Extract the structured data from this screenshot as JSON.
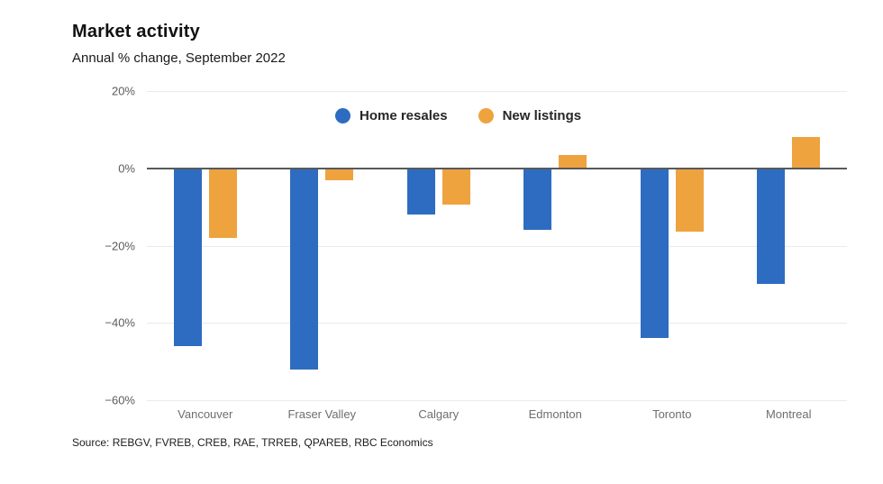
{
  "header": {
    "title": "Market activity",
    "subtitle": "Annual % change, September 2022"
  },
  "source": "Source: REBGV, FVREB, CREB, RAE, TRREB, QPAREB, RBC Economics",
  "colors": {
    "resales": "#2d6cc1",
    "listings": "#eea33e",
    "zero_line": "#58595b",
    "gridline": "#eaeaea",
    "tick_text": "#5a5b5e",
    "category_text": "#6d6e71"
  },
  "chart_data": {
    "type": "bar",
    "title": "Market activity",
    "subtitle": "Annual % change, September 2022",
    "categories": [
      "Vancouver",
      "Fraser Valley",
      "Calgary",
      "Edmonton",
      "Toronto",
      "Montreal"
    ],
    "series": [
      {
        "name": "Home resales",
        "color_key": "resales",
        "values": [
          -46,
          -52,
          -12,
          -16,
          -44,
          -30
        ]
      },
      {
        "name": "New listings",
        "color_key": "listings",
        "values": [
          -18,
          -3,
          -9.5,
          3.5,
          -16.5,
          8
        ]
      }
    ],
    "xlabel": "",
    "ylabel": "",
    "ylim": [
      -60,
      20
    ],
    "yticks": [
      20,
      0,
      -20,
      -40,
      -60
    ],
    "ytick_labels": [
      "20%",
      "0%",
      "−20%",
      "−40%",
      "−60%"
    ],
    "grid": true,
    "legend_position": "top-center"
  }
}
